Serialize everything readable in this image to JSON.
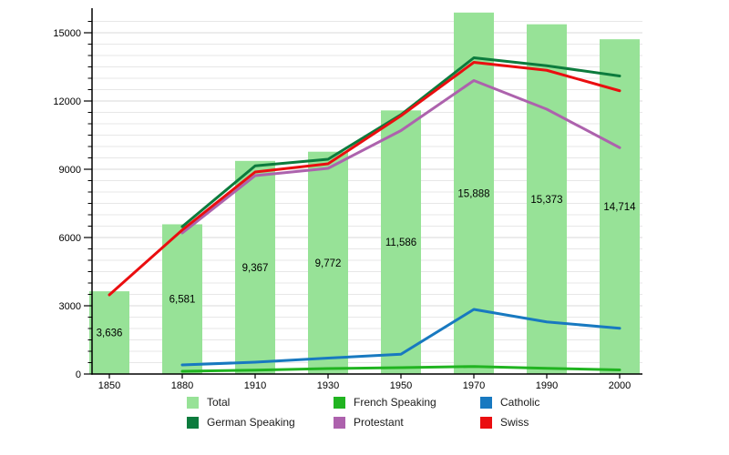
{
  "chart_data": {
    "type": "bar+line",
    "title": "",
    "xlabel": "",
    "ylabel": "",
    "categories": [
      "1850",
      "1880",
      "1910",
      "1930",
      "1950",
      "1970",
      "1990",
      "2000"
    ],
    "bars": {
      "name": "Total",
      "color": "#97e297",
      "values": [
        3636,
        6581,
        9367,
        9772,
        11586,
        15888,
        15373,
        14714
      ],
      "labels": [
        "3,636",
        "6,581",
        "9,367",
        "9,772",
        "11,586",
        "15,888",
        "15,373",
        "14,714"
      ]
    },
    "series": [
      {
        "name": "German Speaking",
        "color": "#0c7b3d",
        "values": [
          null,
          6480,
          9150,
          9440,
          11400,
          13900,
          13550,
          13100
        ]
      },
      {
        "name": "French Speaking",
        "color": "#21b421",
        "values": [
          null,
          120,
          170,
          240,
          280,
          330,
          250,
          180
        ]
      },
      {
        "name": "Protestant",
        "color": "#ad62ad",
        "values": [
          null,
          6200,
          8720,
          9040,
          10700,
          12900,
          11640,
          9950
        ]
      },
      {
        "name": "Catholic",
        "color": "#1879c0",
        "values": [
          null,
          400,
          520,
          700,
          870,
          2840,
          2290,
          2010
        ]
      },
      {
        "name": "Swiss",
        "color": "#ea0e10",
        "values": [
          3480,
          6330,
          8880,
          9240,
          11350,
          13700,
          13350,
          12450
        ]
      }
    ],
    "ylim": [
      0,
      15500
    ],
    "yticks": [
      0,
      3000,
      6000,
      9000,
      12000,
      15000
    ],
    "ytick_labels": [
      "0",
      "3000",
      "6000",
      "9000",
      "12000",
      "15000"
    ],
    "minor_grid_step": 500,
    "grid": true,
    "legend_position": "bottom",
    "legend": [
      {
        "label": "Total",
        "color": "#97e297"
      },
      {
        "label": "German Speaking",
        "color": "#0c7b3d"
      },
      {
        "label": "French Speaking",
        "color": "#21b421"
      },
      {
        "label": "Protestant",
        "color": "#ad62ad"
      },
      {
        "label": "Catholic",
        "color": "#1879c0"
      },
      {
        "label": "Swiss",
        "color": "#ea0e10"
      }
    ],
    "colors": {
      "minor_grid": "#e7e7e7",
      "major_grid": "#d9d9d9",
      "axis": "#000000"
    }
  }
}
